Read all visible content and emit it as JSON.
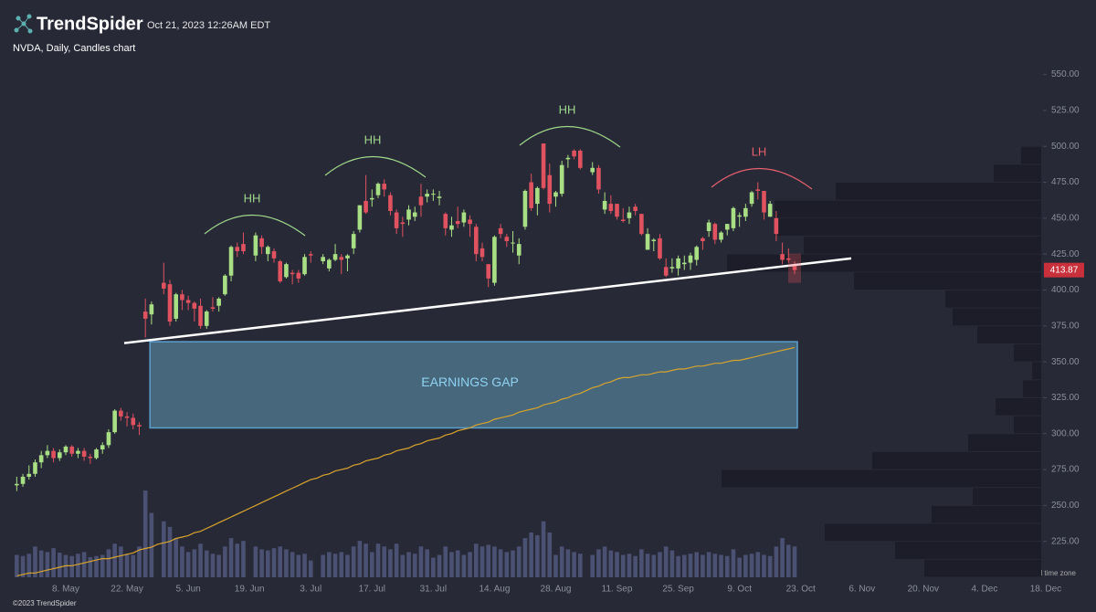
{
  "chart_data": {
    "type": "candlestick",
    "brand": "TrendSpider",
    "timestamp": "Oct 21, 2023 12:26AM EDT",
    "title": "NVDA, Daily, Candles chart",
    "footer": "©2023 TrendSpider",
    "timezone_note": "Your local time zone",
    "up_color": "#a9df84",
    "down_color": "#e0525f",
    "volume_color": "#4b5173",
    "ylim": [
      200,
      565
    ],
    "yticks": [
      {
        "value": 225,
        "label": "225.00"
      },
      {
        "value": 250,
        "label": "250.00"
      },
      {
        "value": 275,
        "label": "275.00"
      },
      {
        "value": 300,
        "label": "300.00"
      },
      {
        "value": 325,
        "label": "325.00"
      },
      {
        "value": 350,
        "label": "350.00"
      },
      {
        "value": 375,
        "label": "375.00"
      },
      {
        "value": 400,
        "label": "400.00"
      },
      {
        "value": 425,
        "label": "425.00"
      },
      {
        "value": 450,
        "label": "450.00"
      },
      {
        "value": 475,
        "label": "475.00"
      },
      {
        "value": 500,
        "label": "500.00"
      },
      {
        "value": 525,
        "label": "525.00"
      },
      {
        "value": 550,
        "label": "550.00"
      }
    ],
    "grid": false,
    "categories": [
      null,
      null,
      null,
      null,
      null,
      null,
      null,
      null,
      "8. May",
      null,
      null,
      null,
      null,
      null,
      null,
      null,
      null,
      null,
      "22. May",
      null,
      null,
      null,
      null,
      null,
      null,
      null,
      null,
      null,
      "5. Jun",
      null,
      null,
      null,
      null,
      null,
      null,
      null,
      null,
      null,
      "19. Jun",
      null,
      null,
      null,
      null,
      null,
      null,
      null,
      null,
      null,
      "3. Jul",
      null,
      null,
      null,
      null,
      null,
      null,
      null,
      null,
      null,
      "17. Jul",
      null,
      null,
      null,
      null,
      null,
      null,
      null,
      null,
      null,
      "31. Jul",
      null,
      null,
      null,
      null,
      null,
      null,
      null,
      null,
      null,
      "14. Aug",
      null,
      null,
      null,
      null,
      null,
      null,
      null,
      null,
      null,
      "28. Aug",
      null,
      null,
      null,
      null,
      null,
      null,
      null,
      null,
      null,
      "11. Sep",
      null,
      null,
      null,
      null,
      null,
      null,
      null,
      null,
      null,
      "25. Sep",
      null,
      null,
      null,
      null,
      null,
      null,
      null,
      null,
      null,
      "9. Oct",
      null,
      null,
      null,
      null,
      null,
      null,
      null,
      null,
      null,
      "23. Oct",
      null,
      null,
      null,
      null,
      null,
      null,
      null,
      null,
      null,
      "6. Nov",
      null,
      null,
      null,
      null,
      null,
      null,
      null,
      null,
      null,
      "20. Nov",
      null,
      null,
      null,
      null,
      null,
      null,
      null,
      null,
      null,
      "4. Dec",
      null,
      null,
      null,
      null,
      null,
      null,
      null,
      null,
      null,
      "18. Dec"
    ],
    "open": [
      264,
      265,
      270,
      272,
      280,
      285,
      288,
      283,
      287,
      291,
      286,
      288,
      284,
      283,
      289,
      292,
      301,
      316,
      312,
      311,
      306,
      385,
      383,
      null,
      405,
      404,
      380,
      397,
      393,
      391,
      389,
      375,
      388,
      389,
      397,
      410,
      430,
      432,
      null,
      424,
      436,
      425,
      427,
      420,
      409,
      412,
      412,
      411,
      425,
      null,
      420,
      415,
      421,
      423,
      422,
      429,
      442,
      462,
      463,
      466,
      474,
      466,
      454,
      447,
      449,
      451,
      465,
      465,
      467,
      464,
      453,
      442,
      448,
      447,
      449,
      444,
      429,
      418,
      405,
      443,
      437,
      433,
      424,
      444,
      475,
      460,
      502,
      480,
      465,
      467,
      491,
      497,
      497,
      null,
      482,
      485,
      456,
      460,
      460,
      449,
      450,
      458,
      453,
      428,
      434,
      436,
      416,
      415,
      415,
      418,
      419,
      421,
      436,
      441,
      446,
      435,
      442,
      443,
      451,
      451,
      460,
      470,
      469,
      451,
      450,
      425,
      422,
      418,
      null,
      null,
      null,
      null,
      null,
      null,
      null,
      null,
      null,
      null,
      null,
      null,
      null,
      null,
      null,
      null,
      null,
      null,
      null,
      null,
      null,
      null,
      null,
      null,
      null,
      null,
      null,
      null,
      null,
      null,
      null,
      null,
      null,
      null,
      null,
      null,
      null,
      null,
      null,
      null,
      null
    ],
    "high": [
      270,
      272,
      278,
      282,
      288,
      292,
      290,
      289,
      292,
      292,
      290,
      290,
      286,
      290,
      294,
      303,
      317,
      318,
      315,
      314,
      308,
      394,
      392,
      null,
      419,
      407,
      398,
      400,
      396,
      392,
      394,
      386,
      395,
      395,
      411,
      431,
      433,
      440,
      null,
      440,
      438,
      431,
      429,
      421,
      419,
      414,
      414,
      425,
      427,
      null,
      425,
      422,
      432,
      425,
      425,
      441,
      459,
      480,
      470,
      475,
      477,
      468,
      456,
      451,
      459,
      458,
      474,
      470,
      470,
      469,
      454,
      451,
      458,
      456,
      452,
      446,
      433,
      418,
      438,
      446,
      439,
      441,
      436,
      470,
      481,
      472,
      502,
      488,
      469,
      490,
      494,
      498,
      498,
      null,
      489,
      487,
      468,
      466,
      460,
      457,
      458,
      460,
      453,
      443,
      436,
      439,
      422,
      422,
      424,
      424,
      426,
      431,
      437,
      449,
      447,
      441,
      446,
      458,
      454,
      460,
      469,
      475,
      469,
      462,
      455,
      433,
      429,
      420,
      null,
      null,
      null,
      null,
      null,
      null,
      null,
      null,
      null,
      null,
      null,
      null,
      null,
      null,
      null,
      null,
      null,
      null,
      null,
      null,
      null,
      null,
      null,
      null,
      null,
      null,
      null,
      null,
      null,
      null,
      null,
      null,
      null,
      null,
      null,
      null,
      null,
      null,
      null,
      null,
      null
    ],
    "low": [
      260,
      263,
      268,
      270,
      276,
      283,
      280,
      281,
      285,
      284,
      283,
      281,
      279,
      282,
      286,
      290,
      300,
      309,
      305,
      303,
      299,
      367,
      376,
      null,
      397,
      375,
      378,
      386,
      386,
      378,
      373,
      373,
      385,
      385,
      396,
      406,
      423,
      425,
      null,
      420,
      425,
      420,
      419,
      405,
      408,
      404,
      405,
      410,
      419,
      null,
      418,
      413,
      420,
      411,
      413,
      425,
      440,
      453,
      458,
      464,
      465,
      452,
      439,
      437,
      445,
      448,
      451,
      461,
      462,
      459,
      438,
      437,
      443,
      444,
      437,
      420,
      420,
      402,
      403,
      436,
      430,
      426,
      418,
      442,
      455,
      452,
      470,
      454,
      458,
      465,
      485,
      491,
      484,
      null,
      480,
      467,
      453,
      453,
      449,
      447,
      446,
      452,
      438,
      428,
      427,
      421,
      409,
      412,
      410,
      414,
      414,
      417,
      428,
      437,
      432,
      433,
      438,
      441,
      444,
      448,
      458,
      463,
      449,
      451,
      434,
      418,
      419,
      411,
      null,
      null,
      null,
      null,
      null,
      null,
      null,
      null,
      null,
      null,
      null,
      null,
      null,
      null,
      null,
      null,
      null,
      null,
      null,
      null,
      null,
      null,
      null,
      null,
      null,
      null,
      null,
      null,
      null,
      null,
      null,
      null,
      null,
      null,
      null,
      null,
      null,
      null,
      null,
      null,
      null
    ],
    "close": [
      265,
      270,
      272,
      280,
      285,
      288,
      283,
      287,
      291,
      286,
      288,
      284,
      283,
      289,
      292,
      301,
      316,
      312,
      311,
      306,
      305,
      380,
      390,
      null,
      401,
      378,
      397,
      393,
      391,
      387,
      375,
      385,
      387,
      394,
      410,
      430,
      427,
      427,
      null,
      438,
      430,
      430,
      422,
      406,
      418,
      411,
      408,
      423,
      424,
      null,
      423,
      421,
      425,
      421,
      424,
      439,
      459,
      454,
      464,
      474,
      470,
      455,
      443,
      446,
      456,
      454,
      459,
      467,
      467,
      465,
      443,
      445,
      446,
      454,
      446,
      425,
      423,
      408,
      437,
      439,
      434,
      433,
      432,
      469,
      457,
      471,
      471,
      460,
      468,
      487,
      492,
      493,
      485,
      null,
      485,
      470,
      462,
      455,
      451,
      448,
      454,
      455,
      439,
      439,
      435,
      422,
      410,
      416,
      422,
      419,
      424,
      430,
      434,
      447,
      435,
      440,
      446,
      457,
      452,
      457,
      468,
      469,
      454,
      460,
      439,
      421,
      421,
      413.87,
      null,
      null,
      null,
      null,
      null,
      null,
      null,
      null,
      null,
      null,
      null,
      null,
      null,
      null,
      null,
      null,
      null,
      null,
      null,
      null,
      null,
      null,
      null,
      null,
      null,
      null,
      null,
      null,
      null,
      null,
      null,
      null,
      null,
      null,
      null,
      null,
      null,
      null,
      null,
      null,
      null
    ],
    "volume": [
      40,
      38,
      42,
      55,
      48,
      45,
      52,
      44,
      40,
      38,
      42,
      45,
      36,
      38,
      40,
      50,
      60,
      55,
      42,
      40,
      55,
      155,
      115,
      null,
      100,
      90,
      70,
      55,
      45,
      50,
      60,
      48,
      42,
      40,
      55,
      70,
      60,
      65,
      null,
      55,
      50,
      48,
      52,
      55,
      50,
      45,
      40,
      42,
      30,
      null,
      40,
      45,
      42,
      45,
      40,
      55,
      65,
      60,
      45,
      60,
      55,
      50,
      60,
      40,
      45,
      42,
      55,
      50,
      35,
      40,
      55,
      45,
      48,
      40,
      45,
      60,
      55,
      58,
      55,
      50,
      45,
      48,
      55,
      70,
      80,
      75,
      100,
      80,
      40,
      55,
      50,
      45,
      42,
      null,
      40,
      50,
      55,
      48,
      45,
      40,
      42,
      38,
      50,
      42,
      40,
      45,
      55,
      48,
      38,
      40,
      42,
      45,
      40,
      45,
      42,
      40,
      38,
      50,
      35,
      40,
      42,
      45,
      40,
      38,
      55,
      70,
      58,
      55,
      null,
      null,
      null,
      null,
      null,
      null,
      null,
      null,
      null,
      null,
      null,
      null,
      null,
      null,
      null,
      null,
      null,
      null,
      null,
      null,
      null,
      null,
      null,
      null,
      null,
      null,
      null,
      null,
      null,
      null,
      null,
      null,
      null,
      null,
      null,
      null,
      null,
      null,
      null,
      null,
      null
    ],
    "ma": {
      "color": "#d9a42c",
      "values": [
        201,
        202,
        203,
        203,
        204,
        205,
        206,
        207,
        208,
        208,
        209,
        210,
        211,
        212,
        213,
        213,
        214,
        215,
        216,
        217,
        219,
        220,
        221,
        223,
        224,
        225,
        227,
        228,
        229,
        231,
        232,
        234,
        236,
        238,
        240,
        242,
        244,
        246,
        248,
        250,
        252,
        254,
        256,
        258,
        260,
        262,
        264,
        266,
        268,
        269,
        271,
        272,
        274,
        275,
        276,
        278,
        279,
        281,
        282,
        283,
        285,
        286,
        288,
        289,
        290,
        292,
        293,
        295,
        296,
        297,
        299,
        300,
        302,
        303,
        304,
        306,
        307,
        308,
        310,
        311,
        312,
        313,
        315,
        316,
        317,
        318,
        320,
        321,
        322,
        324,
        325,
        327,
        328,
        330,
        332,
        333,
        335,
        336,
        338,
        339,
        339,
        340,
        341,
        341,
        342,
        343,
        343,
        344,
        345,
        345,
        346,
        347,
        347,
        348,
        349,
        349,
        350,
        351,
        351,
        352,
        353,
        354,
        355,
        356,
        357,
        358,
        359,
        360,
        null,
        null,
        null,
        null,
        null,
        null,
        null,
        null,
        null,
        null,
        null,
        null,
        null,
        null,
        null,
        null,
        null,
        null,
        null,
        null,
        null,
        null,
        null,
        null,
        null,
        null,
        null,
        null,
        null,
        null,
        null,
        null,
        null,
        null,
        null,
        null,
        null,
        null,
        null,
        null,
        null
      ]
    },
    "volume_profile": {
      "color": "#1c1d28",
      "bins": [
        200,
        212.5,
        225,
        237.5,
        250,
        262.5,
        275,
        287.5,
        300,
        312.5,
        325,
        337.5,
        350,
        362.5,
        375,
        387.5,
        400,
        412.5,
        425,
        437.5,
        450,
        462.5,
        475,
        487.5,
        500
      ],
      "values": [
        128,
        160,
        237,
        120,
        75,
        350,
        185,
        80,
        30,
        50,
        20,
        10,
        30,
        70,
        97,
        105,
        205,
        344,
        260,
        292,
        292,
        225,
        52,
        22
      ]
    },
    "earnings_gap": {
      "label": "EARNINGS GAP",
      "low": 304,
      "high": 364
    },
    "trendline": {
      "start": 363,
      "end": 422
    },
    "annotations": [
      {
        "text": "HH",
        "color": "#9fd88a"
      },
      {
        "text": "HH",
        "color": "#9fd88a"
      },
      {
        "text": "HH",
        "color": "#9fd88a"
      },
      {
        "text": "LH",
        "color": "#e8606e"
      }
    ]
  }
}
